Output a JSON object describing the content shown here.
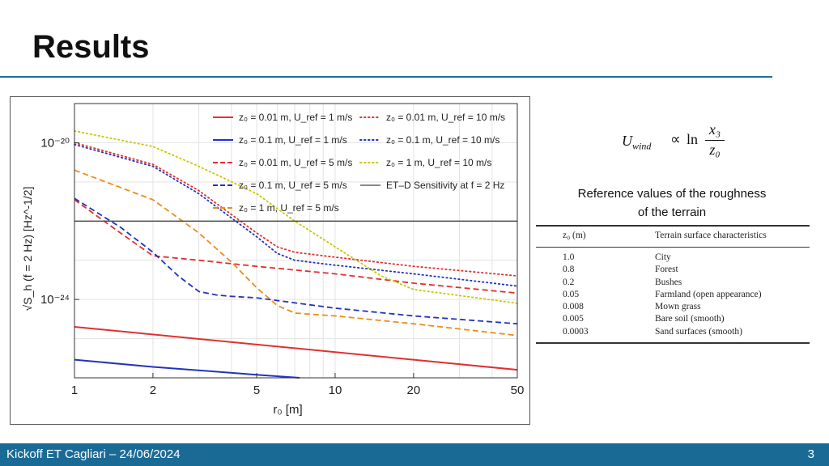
{
  "slide": {
    "title": "Results",
    "footer_text": "Kickoff ET Cagliari – 24/06/2024",
    "page_number": "3",
    "accent_color": "#1a6a96"
  },
  "formula": {
    "lhs": "U",
    "lhs_sub": "wind",
    "relation": "∝",
    "ln": "ln",
    "numerator": "x₃",
    "denominator": "z₀"
  },
  "caption": {
    "line1": "Reference values of the roughness",
    "line2": "of the terrain"
  },
  "roughness_table": {
    "headers": [
      "z₀ (m)",
      "Terrain surface characteristics"
    ],
    "rows": [
      [
        "1.0",
        "City"
      ],
      [
        "0.8",
        "Forest"
      ],
      [
        "0.2",
        "Bushes"
      ],
      [
        "0.05",
        "Farmland (open appearance)"
      ],
      [
        "0.008",
        "Mown grass"
      ],
      [
        "0.005",
        "Bare soil (smooth)"
      ],
      [
        "0.0003",
        "Sand surfaces (smooth)"
      ]
    ]
  },
  "chart_data": {
    "type": "line",
    "xlabel": "r₀ [m]",
    "ylabel": "√S_h (f = 2 Hz) [Hz^-1/2]",
    "xscale": "log",
    "yscale": "log",
    "xlim": [
      1,
      50
    ],
    "ylim": [
      1e-26,
      1e-19
    ],
    "xticks": [
      1,
      2,
      5,
      10,
      20,
      50
    ],
    "xtick_labels": [
      "1",
      "2",
      "5",
      "10",
      "20",
      "50"
    ],
    "yticks": [
      1e-20,
      1e-24
    ],
    "ytick_labels": [
      "10⁻²⁰",
      "10⁻²⁴"
    ],
    "grid": true,
    "legend_position": "top-right",
    "series": [
      {
        "name": "z₀ = 0.01 m, U_ref = 1 m/s",
        "color": "#e03030",
        "style": "solid",
        "x": [
          1,
          50
        ],
        "y": [
          2e-25,
          1.6e-26
        ]
      },
      {
        "name": "z₀ = 0.1 m, U_ref = 1 m/s",
        "color": "#2233bb",
        "style": "solid",
        "x": [
          1,
          2,
          5,
          7.3
        ],
        "y": [
          2.9e-26,
          1.9e-26,
          1.2e-26,
          1e-26
        ]
      },
      {
        "name": "z₀ = 0.01 m, U_ref = 5 m/s",
        "color": "#e03030",
        "style": "dashed",
        "x": [
          1,
          1.5,
          2,
          3,
          5,
          10,
          20,
          50
        ],
        "y": [
          3.5e-22,
          5e-23,
          1.3e-23,
          1e-23,
          7e-24,
          4.5e-24,
          2.6e-24,
          1.45e-24
        ]
      },
      {
        "name": "z₀ = 0.1 m, U_ref = 5 m/s",
        "color": "#2233bb",
        "style": "dashed",
        "x": [
          1,
          1.5,
          2,
          2.5,
          3,
          3.5,
          4,
          5,
          10,
          20,
          50
        ],
        "y": [
          3.8e-22,
          7e-23,
          1.6e-23,
          4e-24,
          1.6e-24,
          1.3e-24,
          1.2e-24,
          1.1e-24,
          6e-25,
          3.8e-25,
          2.4e-25
        ]
      },
      {
        "name": "z₀ = 1 m, U_ref = 5 m/s",
        "color": "#ee8c1a",
        "style": "dashed",
        "x": [
          1,
          2,
          3,
          4,
          5,
          6,
          7,
          8,
          10,
          20,
          50
        ],
        "y": [
          2e-21,
          3.5e-22,
          5e-23,
          9e-24,
          2e-24,
          7e-25,
          4.5e-25,
          4.2e-25,
          3.8e-25,
          2.4e-25,
          1.2e-25
        ]
      },
      {
        "name": "z₀ = 0.01 m, U_ref = 10 m/s",
        "color": "#e03030",
        "style": "dotted",
        "x": [
          1,
          2,
          3,
          5,
          6,
          7,
          10,
          20,
          50
        ],
        "y": [
          1e-20,
          2.8e-21,
          6e-22,
          5e-23,
          2.2e-23,
          1.6e-23,
          1.2e-23,
          7e-24,
          4e-24
        ]
      },
      {
        "name": "z₀ = 0.1 m, U_ref = 10 m/s",
        "color": "#2233bb",
        "style": "dotted",
        "x": [
          1,
          2,
          3,
          5,
          6,
          7,
          10,
          20,
          50
        ],
        "y": [
          9e-21,
          2.5e-21,
          5e-22,
          4e-23,
          1.5e-23,
          1e-23,
          7.5e-24,
          4.5e-24,
          2.2e-24
        ]
      },
      {
        "name": "z₀ = 1 m, U_ref = 10 m/s",
        "color": "#c8c800",
        "style": "dotted",
        "x": [
          1,
          2,
          3,
          5,
          7,
          10,
          15,
          20,
          50
        ],
        "y": [
          2e-20,
          8e-21,
          2.5e-21,
          5e-22,
          1e-22,
          2.2e-23,
          4e-24,
          1.8e-24,
          8e-25
        ]
      },
      {
        "name": "ET–D Sensitivity at f = 2 Hz",
        "color": "#444444",
        "style": "solid",
        "x": [
          1,
          50
        ],
        "y": [
          1e-22,
          1e-22
        ]
      }
    ]
  }
}
